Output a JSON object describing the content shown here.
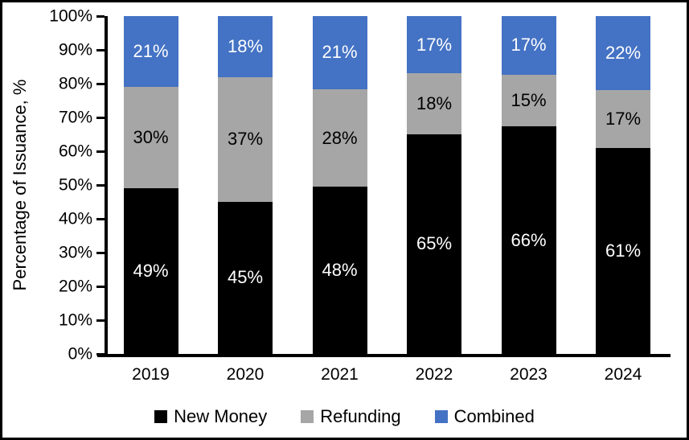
{
  "figure": {
    "background": "#ffffff",
    "border_color": "#000000"
  },
  "chart_data": {
    "type": "bar",
    "stacked": true,
    "title": "",
    "xlabel": "",
    "ylabel": "Percentage of Issuance, %",
    "ylim": [
      0,
      100
    ],
    "grid": false,
    "legend_position": "bottom",
    "y_ticks": [
      {
        "value": 0,
        "label": "0%"
      },
      {
        "value": 10,
        "label": "10%"
      },
      {
        "value": 20,
        "label": "20%"
      },
      {
        "value": 30,
        "label": "30%"
      },
      {
        "value": 40,
        "label": "40%"
      },
      {
        "value": 50,
        "label": "50%"
      },
      {
        "value": 60,
        "label": "60%"
      },
      {
        "value": 70,
        "label": "70%"
      },
      {
        "value": 80,
        "label": "80%"
      },
      {
        "value": 90,
        "label": "90%"
      },
      {
        "value": 100,
        "label": "100%"
      }
    ],
    "categories": [
      "2019",
      "2020",
      "2021",
      "2022",
      "2023",
      "2024"
    ],
    "series": [
      {
        "name": "New Money",
        "color": "#000000",
        "label_color": "#ffffff",
        "values": [
          49,
          45,
          48,
          65,
          66,
          61
        ],
        "labels": [
          "49%",
          "45%",
          "48%",
          "65%",
          "66%",
          "61%"
        ]
      },
      {
        "name": "Refunding",
        "color": "#a6a6a6",
        "label_color": "#000000",
        "values": [
          30,
          37,
          28,
          18,
          15,
          17
        ],
        "labels": [
          "30%",
          "37%",
          "28%",
          "18%",
          "15%",
          "17%"
        ]
      },
      {
        "name": "Combined",
        "color": "#4472c4",
        "label_color": "#ffffff",
        "values": [
          21,
          18,
          21,
          17,
          17,
          22
        ],
        "labels": [
          "21%",
          "18%",
          "21%",
          "17%",
          "17%",
          "22%"
        ]
      }
    ]
  }
}
